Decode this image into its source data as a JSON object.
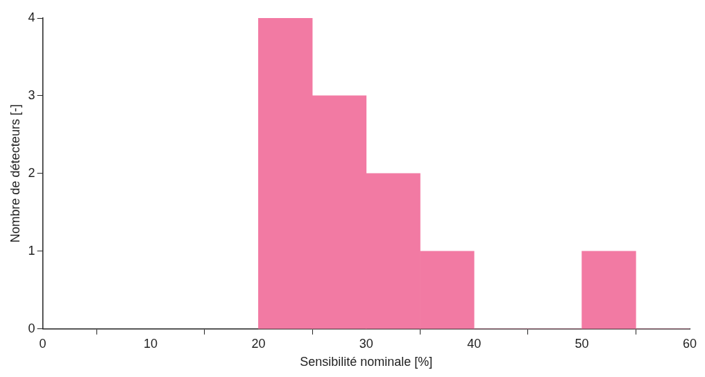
{
  "chart_data": {
    "type": "histogram",
    "xlabel": "Sensibilité nominale [%]",
    "ylabel": "Nombre de détecteurs [-]",
    "bins": [
      20,
      25,
      30,
      35,
      40,
      45,
      50,
      55,
      60
    ],
    "values": [
      4,
      3,
      2,
      1,
      0,
      0,
      1,
      0
    ],
    "color": "#f27aa3",
    "xlim": [
      0,
      60
    ],
    "xticks": [
      0,
      10,
      20,
      30,
      40,
      50,
      60
    ],
    "ylim": [
      0,
      4
    ],
    "yticks": [
      0,
      1,
      2,
      3,
      4
    ],
    "grid": false,
    "legend": false
  }
}
